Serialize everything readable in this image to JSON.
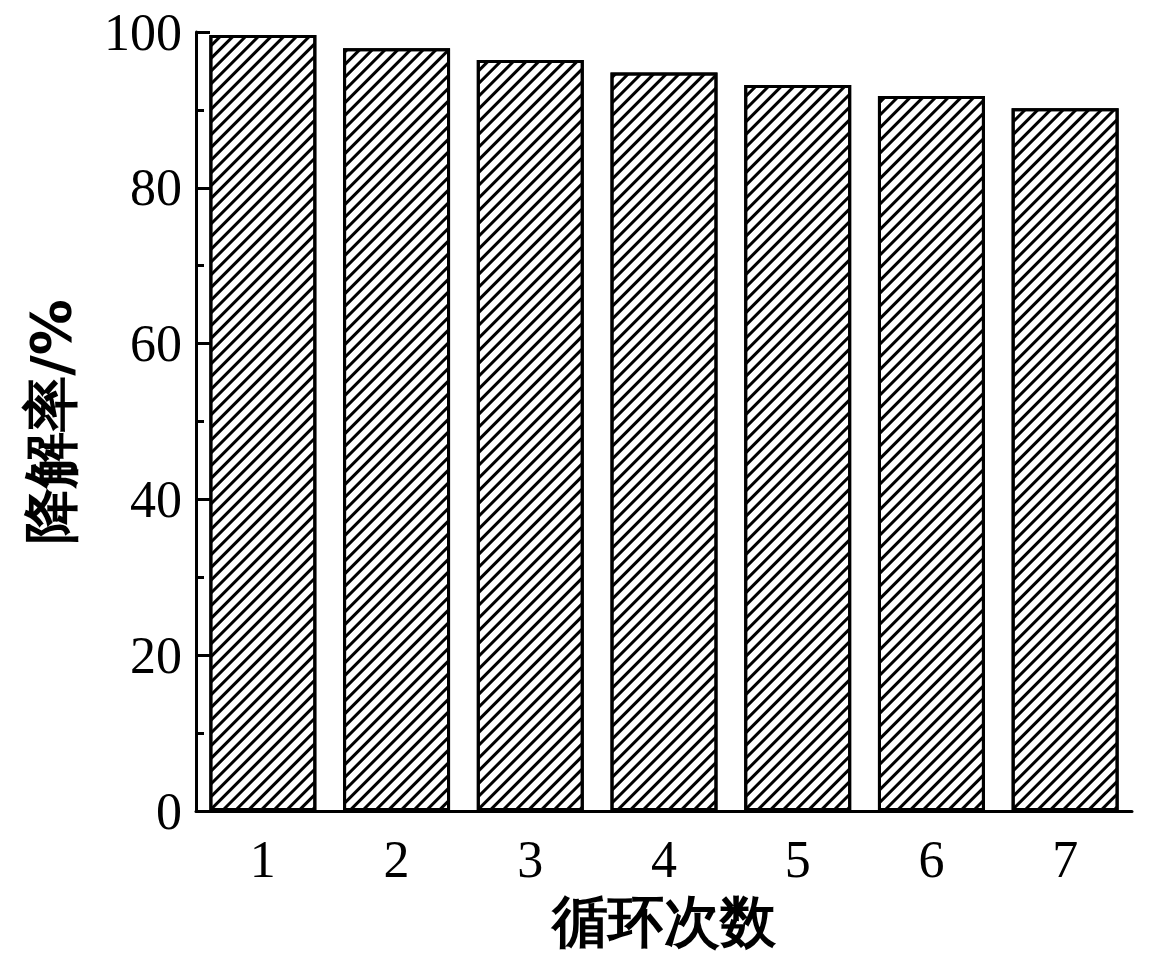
{
  "chart_data": {
    "type": "bar",
    "xlabel": "循环次数",
    "ylabel": "降解率/%",
    "categories": [
      "1",
      "2",
      "3",
      "4",
      "5",
      "6",
      "7"
    ],
    "values": [
      99.6,
      97.9,
      96.4,
      94.8,
      93.2,
      91.8,
      90.2
    ],
    "color": "#000000",
    "ylim": [
      0,
      100
    ],
    "yticks": [
      0,
      {
        "value": 10,
        "label": null
      },
      20,
      {
        "value": 30,
        "label": null
      },
      40,
      {
        "value": 50,
        "label": null
      },
      60,
      {
        "value": 70,
        "label": null
      },
      80,
      {
        "value": 90,
        "label": null
      },
      100
    ]
  }
}
